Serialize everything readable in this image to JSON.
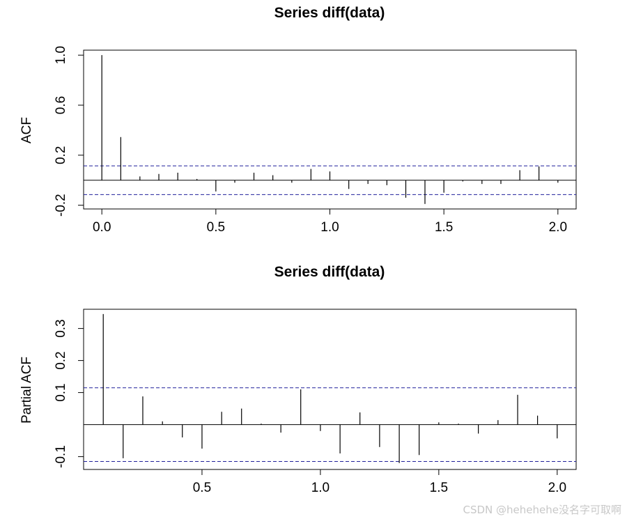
{
  "chart_data": [
    {
      "type": "acf",
      "title": "Series  diff(data)",
      "ylabel": "ACF",
      "xlim": [
        -0.08,
        2.08
      ],
      "ylim": [
        -0.23,
        1.04
      ],
      "xticks": [
        0.0,
        0.5,
        1.0,
        1.5,
        2.0
      ],
      "xtick_labels": [
        "0.0",
        "0.5",
        "1.0",
        "1.5",
        "2.0"
      ],
      "yticks": [
        -0.2,
        0.2,
        0.6,
        1.0
      ],
      "ytick_labels": [
        "-0.2",
        "0.2",
        "0.6",
        "1.0"
      ],
      "conf_limit": 0.115,
      "lags": [
        0.0,
        0.083,
        0.167,
        0.25,
        0.333,
        0.417,
        0.5,
        0.583,
        0.667,
        0.75,
        0.833,
        0.917,
        1.0,
        1.083,
        1.167,
        1.25,
        1.333,
        1.417,
        1.5,
        1.583,
        1.667,
        1.75,
        1.833,
        1.917,
        2.0
      ],
      "values": [
        1.0,
        0.345,
        0.03,
        0.05,
        0.06,
        0.01,
        -0.09,
        -0.02,
        0.06,
        0.04,
        -0.02,
        0.09,
        0.07,
        -0.07,
        -0.03,
        -0.04,
        -0.14,
        -0.19,
        -0.1,
        -0.01,
        -0.03,
        -0.03,
        0.08,
        0.11,
        -0.02
      ]
    },
    {
      "type": "pacf",
      "title": "Series  diff(data)",
      "ylabel": "Partial ACF",
      "xlim": [
        0.0,
        2.08
      ],
      "ylim": [
        -0.14,
        0.36
      ],
      "xticks": [
        0.5,
        1.0,
        1.5,
        2.0
      ],
      "xtick_labels": [
        "0.5",
        "1.0",
        "1.5",
        "2.0"
      ],
      "yticks": [
        -0.1,
        0.1,
        0.2,
        0.3
      ],
      "ytick_labels": [
        "-0.1",
        "0.1",
        "0.2",
        "0.3"
      ],
      "conf_limit": 0.115,
      "lags": [
        0.083,
        0.167,
        0.25,
        0.333,
        0.417,
        0.5,
        0.583,
        0.667,
        0.75,
        0.833,
        0.917,
        1.0,
        1.083,
        1.167,
        1.25,
        1.333,
        1.417,
        1.5,
        1.583,
        1.667,
        1.75,
        1.833,
        1.917,
        2.0
      ],
      "values": [
        0.345,
        -0.105,
        0.088,
        0.01,
        -0.04,
        -0.075,
        0.04,
        0.05,
        0.003,
        -0.025,
        0.11,
        -0.02,
        -0.09,
        0.038,
        -0.07,
        -0.12,
        -0.095,
        0.007,
        0.003,
        -0.028,
        0.014,
        0.093,
        0.028,
        -0.043
      ]
    }
  ],
  "watermark": "CSDN @hehehehe没名字可取啊"
}
